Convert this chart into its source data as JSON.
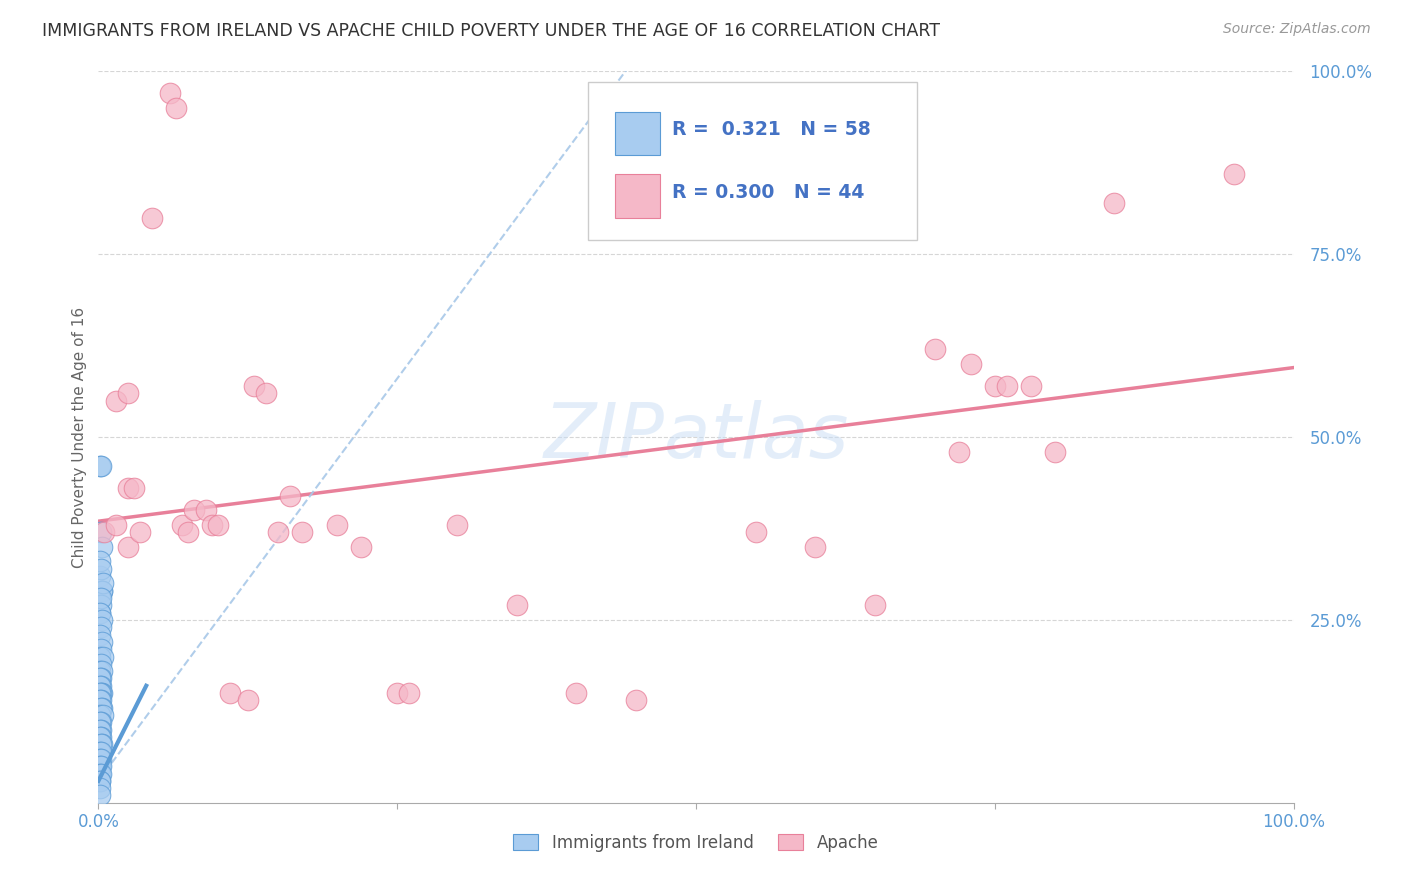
{
  "title": "IMMIGRANTS FROM IRELAND VS APACHE CHILD POVERTY UNDER THE AGE OF 16 CORRELATION CHART",
  "source": "Source: ZipAtlas.com",
  "ylabel": "Child Poverty Under the Age of 16",
  "legend_label1": "Immigrants from Ireland",
  "legend_label2": "Apache",
  "r1": "0.321",
  "n1": "58",
  "r2": "0.300",
  "n2": "44",
  "blue_fill": "#A8CCF0",
  "blue_edge": "#5B9BD5",
  "pink_fill": "#F5B8C8",
  "pink_edge": "#E8809A",
  "pink_line_color": "#E8809A",
  "blue_line_color": "#5B9BD5",
  "blue_dashed_color": "#A8C8E8",
  "grid_color": "#CCCCCC",
  "watermark": "ZIPatlas",
  "blue_scatter_x": [
    0.001,
    0.002,
    0.001,
    0.003,
    0.002,
    0.003,
    0.001,
    0.002,
    0.003,
    0.001,
    0.002,
    0.001,
    0.004,
    0.002,
    0.001,
    0.003,
    0.002,
    0.001,
    0.003,
    0.002,
    0.001,
    0.004,
    0.002,
    0.001,
    0.003,
    0.002,
    0.001,
    0.002,
    0.001,
    0.003,
    0.002,
    0.001,
    0.002,
    0.001,
    0.003,
    0.002,
    0.001,
    0.004,
    0.002,
    0.001,
    0.002,
    0.001,
    0.002,
    0.001,
    0.003,
    0.002,
    0.001,
    0.002,
    0.001,
    0.002,
    0.001,
    0.002,
    0.001,
    0.002,
    0.001,
    0.001,
    0.001,
    0.001
  ],
  "blue_scatter_y": [
    0.46,
    0.46,
    0.31,
    0.29,
    0.37,
    0.35,
    0.33,
    0.32,
    0.29,
    0.28,
    0.27,
    0.26,
    0.3,
    0.28,
    0.26,
    0.25,
    0.24,
    0.23,
    0.22,
    0.21,
    0.2,
    0.2,
    0.19,
    0.18,
    0.18,
    0.17,
    0.17,
    0.16,
    0.16,
    0.15,
    0.15,
    0.15,
    0.14,
    0.14,
    0.13,
    0.13,
    0.12,
    0.12,
    0.11,
    0.11,
    0.1,
    0.1,
    0.09,
    0.09,
    0.08,
    0.08,
    0.07,
    0.07,
    0.06,
    0.06,
    0.05,
    0.05,
    0.04,
    0.04,
    0.03,
    0.03,
    0.02,
    0.01
  ],
  "pink_scatter_x": [
    0.005,
    0.015,
    0.025,
    0.035,
    0.015,
    0.025,
    0.025,
    0.03,
    0.045,
    0.06,
    0.065,
    0.07,
    0.075,
    0.08,
    0.09,
    0.095,
    0.1,
    0.11,
    0.125,
    0.13,
    0.14,
    0.15,
    0.16,
    0.17,
    0.2,
    0.22,
    0.25,
    0.26,
    0.3,
    0.35,
    0.4,
    0.45,
    0.55,
    0.6,
    0.65,
    0.7,
    0.72,
    0.73,
    0.75,
    0.76,
    0.78,
    0.8,
    0.85,
    0.95
  ],
  "pink_scatter_y": [
    0.37,
    0.38,
    0.35,
    0.37,
    0.55,
    0.56,
    0.43,
    0.43,
    0.8,
    0.97,
    0.95,
    0.38,
    0.37,
    0.4,
    0.4,
    0.38,
    0.38,
    0.15,
    0.14,
    0.57,
    0.56,
    0.37,
    0.42,
    0.37,
    0.38,
    0.35,
    0.15,
    0.15,
    0.38,
    0.27,
    0.15,
    0.14,
    0.37,
    0.35,
    0.27,
    0.62,
    0.48,
    0.6,
    0.57,
    0.57,
    0.57,
    0.48,
    0.82,
    0.86
  ]
}
